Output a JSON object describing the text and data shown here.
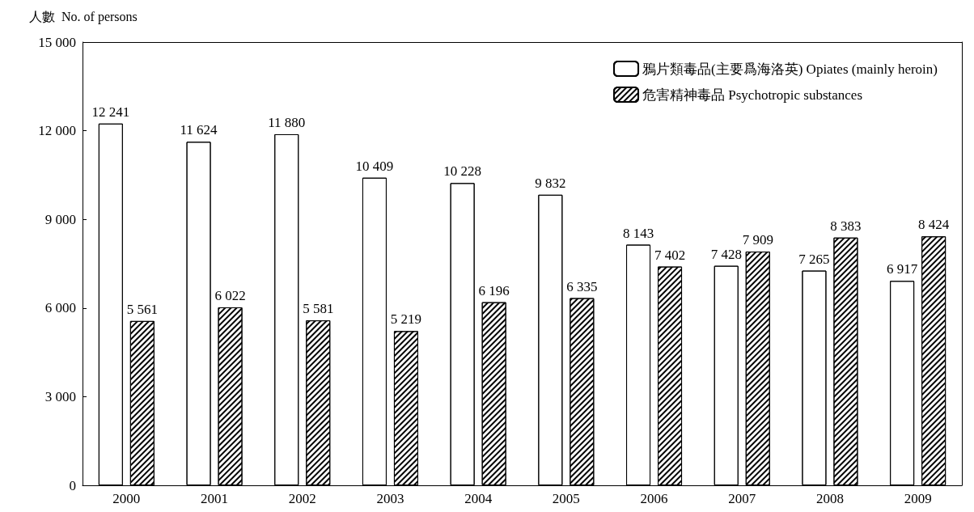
{
  "chart_data": {
    "type": "bar",
    "ylabel": "人數  No. of persons",
    "categories": [
      "2000",
      "2001",
      "2002",
      "2003",
      "2004",
      "2005",
      "2006",
      "2007",
      "2008",
      "2009"
    ],
    "series": [
      {
        "name": "鴉片類毒品(主要爲海洛英) Opiates (mainly heroin)",
        "color": "#ffffff",
        "values": [
          12241,
          11624,
          11880,
          10409,
          10228,
          9832,
          8143,
          7428,
          7265,
          6917
        ]
      },
      {
        "name": "危害精神毒品 Psychotropic substances",
        "color": "#ffffff",
        "values": [
          5561,
          6022,
          5581,
          5219,
          6196,
          6335,
          7402,
          7909,
          8383,
          8424
        ]
      }
    ],
    "ylim": [
      0,
      15000
    ],
    "yticks": [
      0,
      {
        "value": 3000,
        "label": "3 000"
      },
      {
        "value": 6000,
        "label": "6 000"
      },
      {
        "value": 9000,
        "label": "9 000"
      },
      {
        "value": 12000,
        "label": "12 000"
      },
      {
        "value": 15000,
        "label": "15 000"
      }
    ],
    "data_labels": true,
    "grid": false,
    "legend": "top right"
  }
}
